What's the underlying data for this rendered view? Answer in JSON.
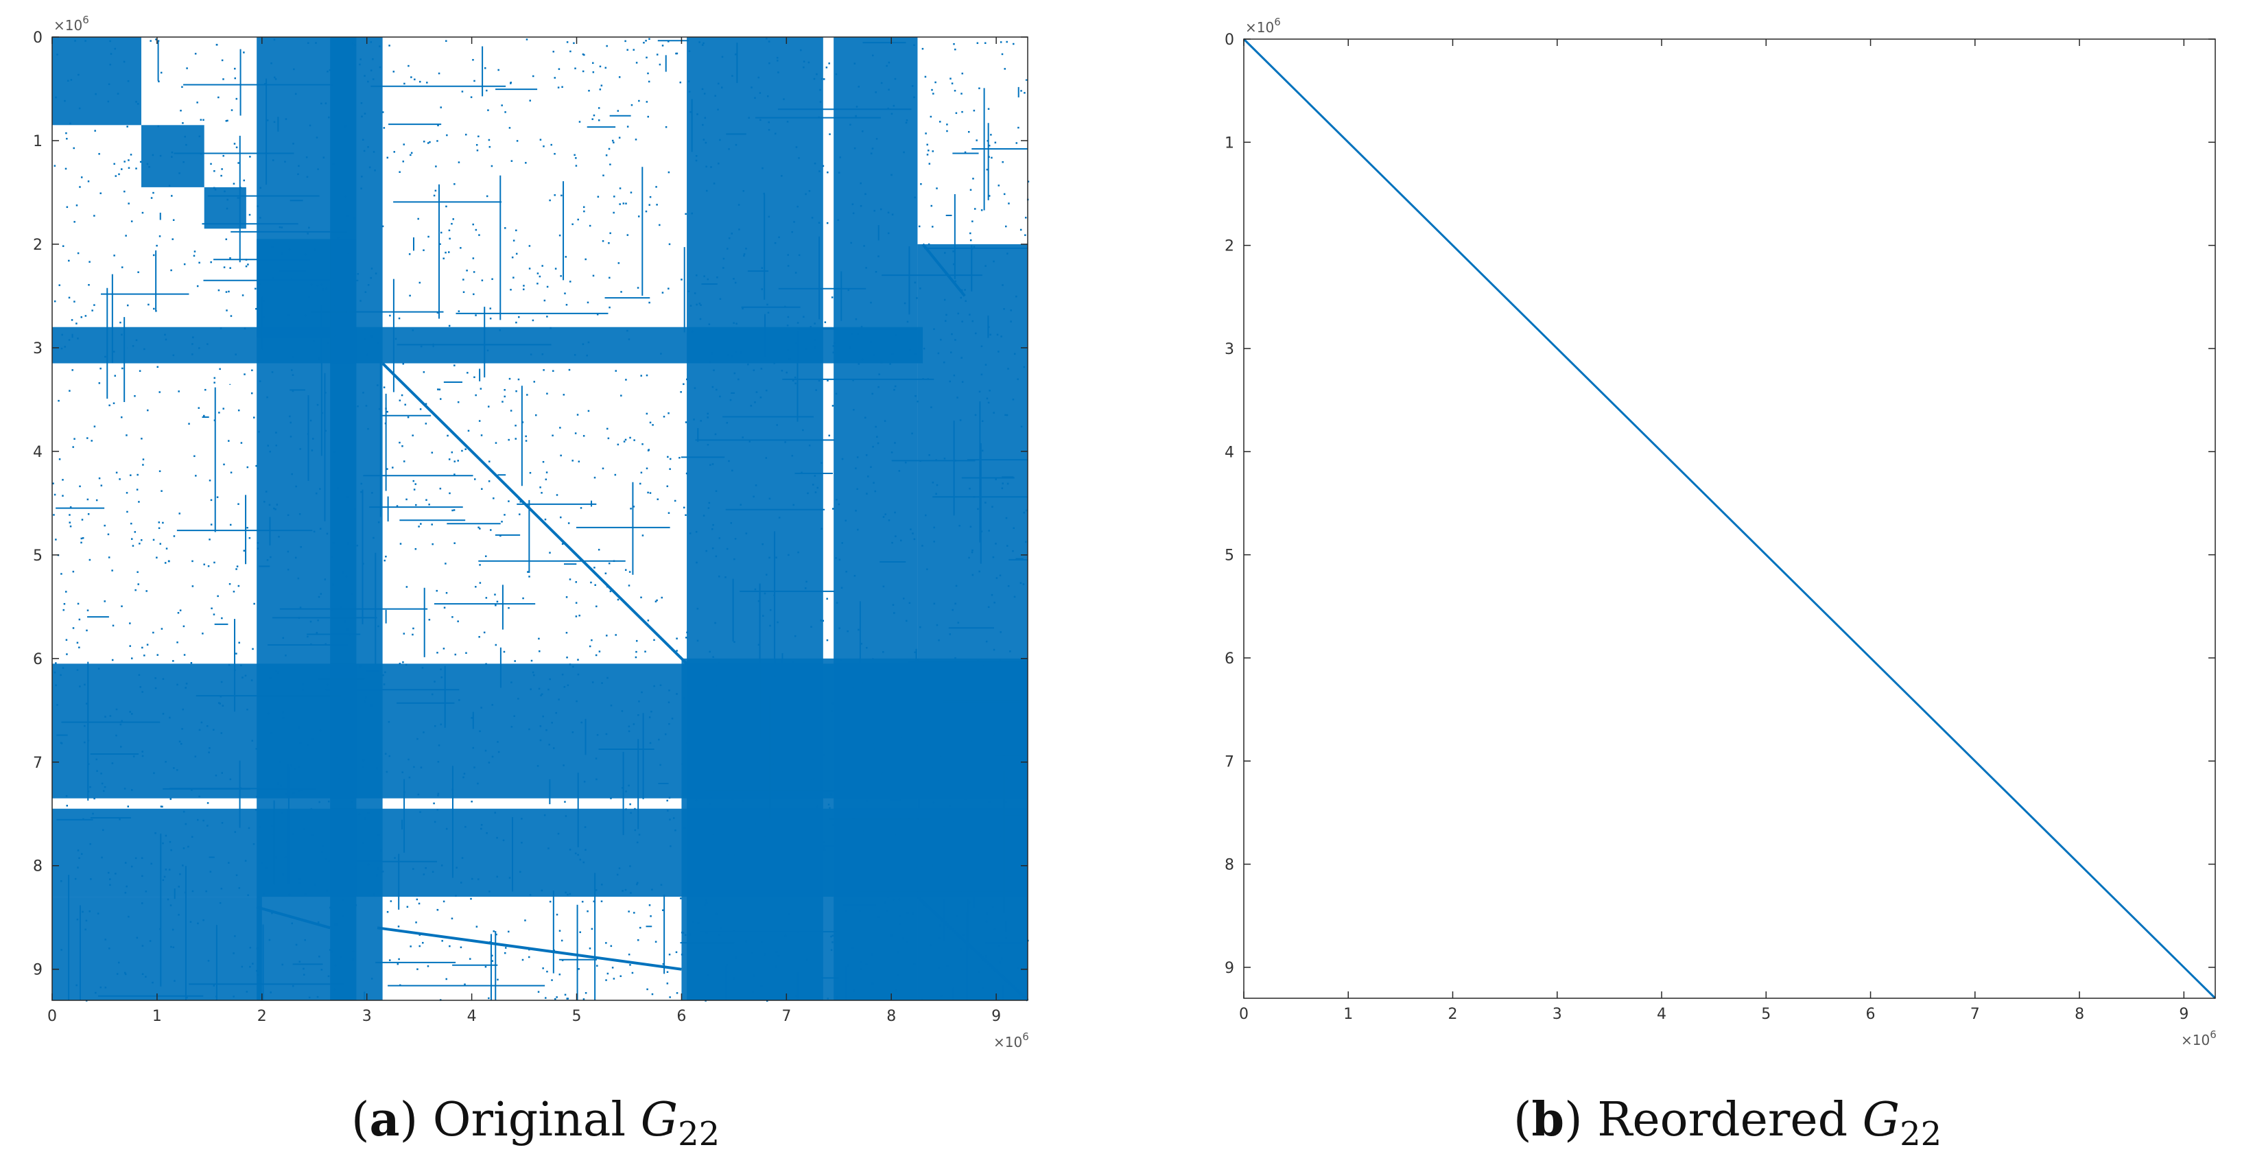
{
  "chart_data": [
    {
      "type": "scatter",
      "panel": "a",
      "caption": {
        "letter": "a",
        "text": "Original",
        "symbol": "G",
        "subscript": "22"
      },
      "x_ticks": [
        "0",
        "1",
        "2",
        "3",
        "4",
        "5",
        "6",
        "7",
        "8",
        "9"
      ],
      "y_ticks": [
        "0",
        "1",
        "2",
        "3",
        "4",
        "5",
        "6",
        "7",
        "8",
        "9"
      ],
      "x_multiplier": "×10",
      "y_multiplier": "×10",
      "exponent": "6",
      "xlim": [
        0,
        9300000
      ],
      "ylim": [
        0,
        9300000
      ],
      "y_reversed": true,
      "color": "#0072BD",
      "grid": false,
      "dense_blocks_1e6": [
        [
          0,
          0,
          0.85,
          0.85
        ],
        [
          0.85,
          0.85,
          1.45,
          1.45
        ],
        [
          1.45,
          1.45,
          1.85,
          1.85
        ],
        [
          1.95,
          1.95,
          2.9,
          2.9
        ],
        [
          0,
          2.8,
          8.3,
          3.15
        ],
        [
          1.95,
          0,
          2.9,
          9.3
        ],
        [
          2.65,
          0,
          3.15,
          9.3
        ],
        [
          0,
          6.05,
          9.3,
          7.35
        ],
        [
          0,
          7.45,
          9.3,
          8.3
        ],
        [
          6.05,
          0,
          7.35,
          9.3
        ],
        [
          7.45,
          0,
          8.25,
          9.3
        ],
        [
          6.0,
          6.0,
          9.3,
          9.3
        ],
        [
          8.25,
          2.0,
          9.3,
          9.3
        ],
        [
          0,
          8.3,
          2.0,
          9.3
        ]
      ],
      "diagonal_segments_1e6": [
        [
          3.15,
          3.15,
          6.05,
          6.05
        ],
        [
          1.95,
          8.4,
          2.65,
          8.6
        ],
        [
          3.1,
          8.6,
          6.0,
          9.0
        ],
        [
          8.3,
          2.0,
          8.7,
          2.5
        ],
        [
          8.25,
          8.3,
          9.3,
          9.3
        ]
      ]
    },
    {
      "type": "scatter",
      "panel": "b",
      "caption": {
        "letter": "b",
        "text": "Reordered",
        "symbol": "G",
        "subscript": "22"
      },
      "x_ticks": [
        "0",
        "1",
        "2",
        "3",
        "4",
        "5",
        "6",
        "7",
        "8",
        "9"
      ],
      "y_ticks": [
        "0",
        "1",
        "2",
        "3",
        "4",
        "5",
        "6",
        "7",
        "8",
        "9"
      ],
      "x_multiplier": "×10",
      "y_multiplier": "×10",
      "exponent": "6",
      "xlim": [
        0,
        9300000
      ],
      "ylim": [
        0,
        9300000
      ],
      "y_reversed": true,
      "color": "#0072BD",
      "grid": false,
      "diagonal_segments_1e6": [
        [
          0,
          0,
          9.3,
          9.3
        ]
      ]
    }
  ]
}
